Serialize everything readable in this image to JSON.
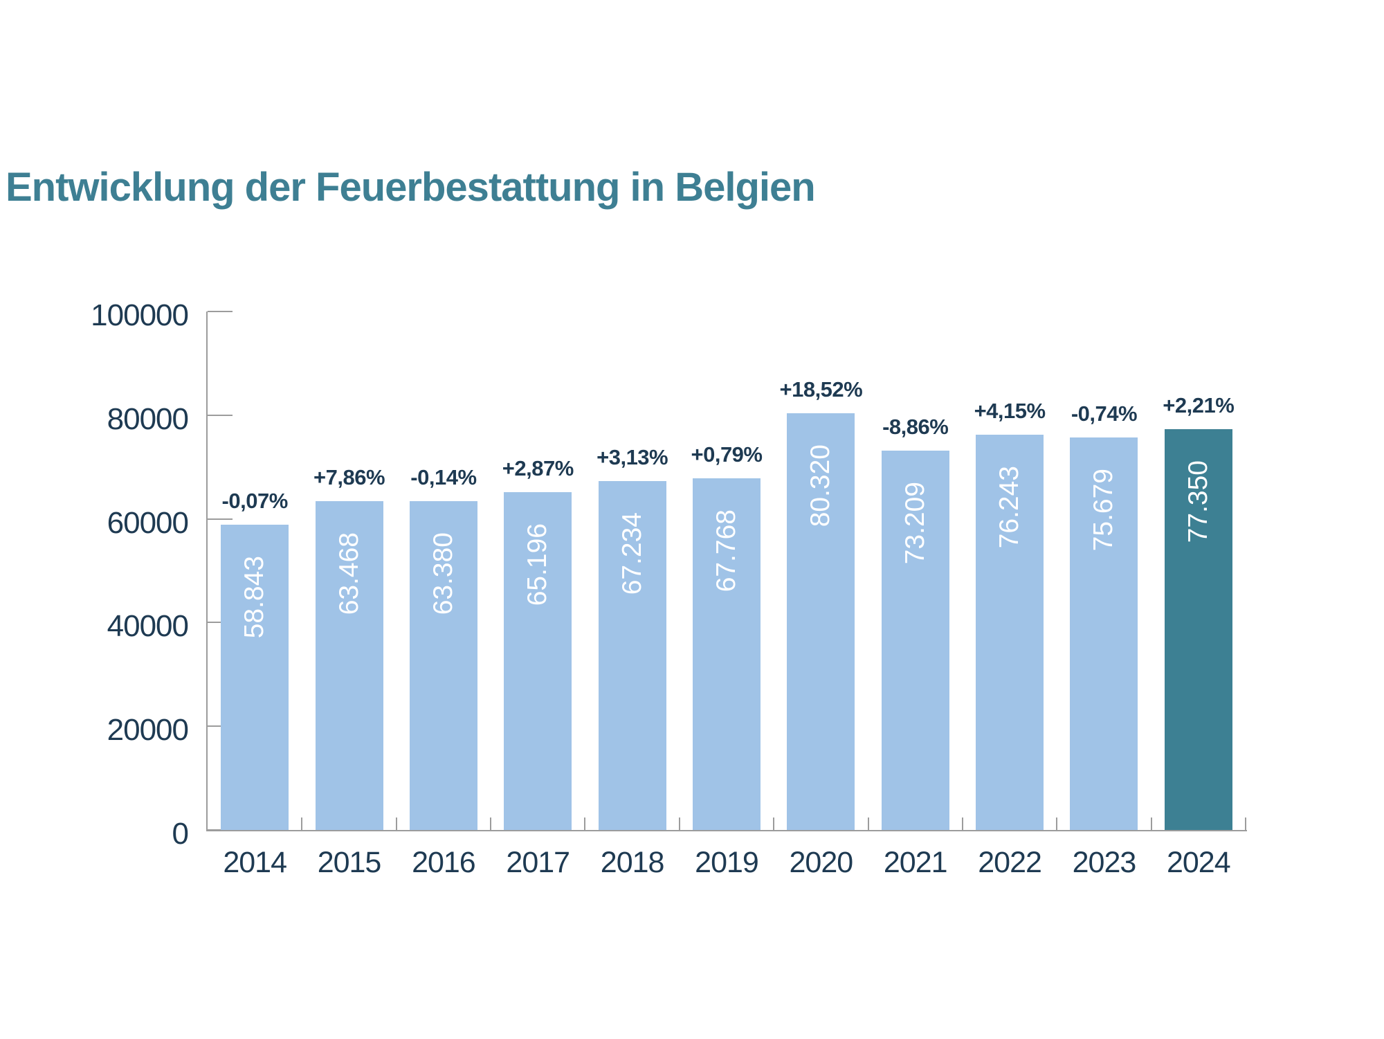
{
  "page": {
    "title": "Entwicklung der Feuerbestattung in Belgien"
  },
  "chart_data": {
    "type": "bar",
    "title": "Entwicklung der Feuerbestattung in Belgien",
    "categories": [
      "2014",
      "2015",
      "2016",
      "2017",
      "2018",
      "2019",
      "2020",
      "2021",
      "2022",
      "2023",
      "2024"
    ],
    "values": [
      58843,
      63468,
      63380,
      65196,
      67234,
      67768,
      80320,
      73209,
      76243,
      75679,
      77350
    ],
    "value_labels": [
      "58.843",
      "63.468",
      "63.380",
      "65.196",
      "67.234",
      "67.768",
      "80.320",
      "73.209",
      "76.243",
      "75.679",
      "77.350"
    ],
    "pct_change_labels": [
      "-0,07%",
      "+7,86%",
      "-0,14%",
      "+2,87%",
      "+3,13%",
      "+0,79%",
      "+18,52%",
      "-8,86%",
      "+4,15%",
      "-0,74%",
      "+2,21%"
    ],
    "xlabel": "",
    "ylabel": "",
    "ylim": [
      0,
      100000
    ],
    "yticks": [
      0,
      20000,
      40000,
      60000,
      80000,
      100000
    ],
    "ytick_labels": [
      "0",
      "20000",
      "40000",
      "60000",
      "80000",
      "100000"
    ],
    "grid": false,
    "legend": false,
    "highlight_index": 10,
    "colors": {
      "bar": "#a0c3e7",
      "bar_highlight": "#3d8093",
      "title": "#3e7f93",
      "axis_text": "#1e3a52",
      "axis_line": "#9c9c9c",
      "value_label": "#ffffff"
    }
  }
}
